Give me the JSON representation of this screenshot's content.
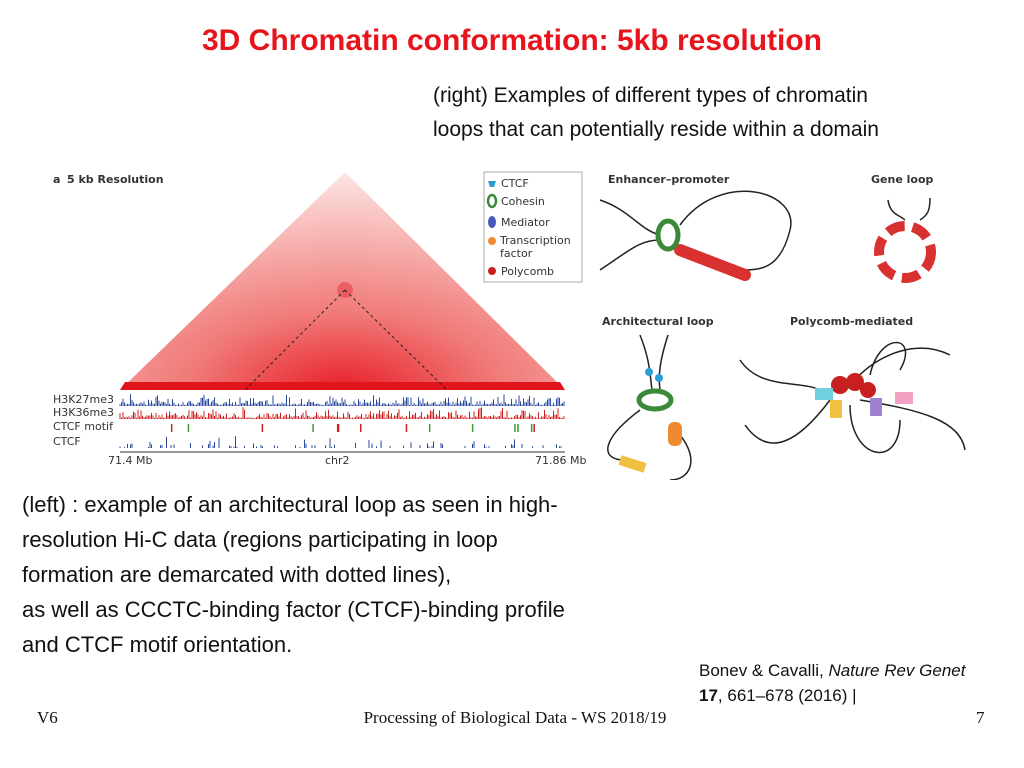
{
  "title": "3D Chromatin conformation: 5kb resolution",
  "caption_right": [
    "(right) Examples of different types of chromatin",
    "loops that can potentially reside within a domain"
  ],
  "figure_left": {
    "panel_label": "a",
    "title": "5 kb Resolution",
    "tracks": [
      "H3K27me3",
      "H3K36me3",
      "CTCF motif",
      "CTCF"
    ],
    "axis": {
      "start": "71.4 Mb",
      "chromosome": "chr2",
      "end": "71.86 Mb"
    }
  },
  "legend": [
    "CTCF",
    "Cohesin",
    "Mediator",
    "Transcription factor",
    "Polycomb"
  ],
  "panels": [
    "Enhancer–promoter",
    "Gene loop",
    "Architectural loop",
    "Polycomb-mediated"
  ],
  "body": [
    "(left) : example of an architectural loop as seen in high-",
    "resolution Hi-C data (regions participating in loop",
    "formation are demarcated with dotted lines),",
    "as well as CCCTC-binding factor (CTCF)-binding profile",
    "and CTCF motif orientation."
  ],
  "citation": {
    "authors": "Bonev & Cavalli, ",
    "journal": "Nature Rev Genet",
    "volume": "17",
    "pages": ", 661–678 (2016) |"
  },
  "footer": {
    "left": "V6",
    "center": "Processing of Biological Data - WS 2018/19",
    "right": "7"
  }
}
